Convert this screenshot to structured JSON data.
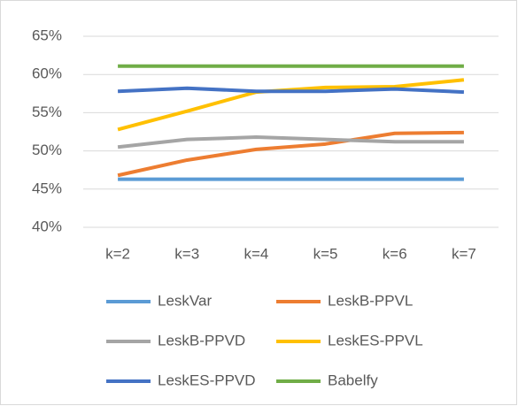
{
  "chart_data": {
    "type": "line",
    "categories": [
      "k=2",
      "k=3",
      "k=4",
      "k=5",
      "k=6",
      "k=7"
    ],
    "series": [
      {
        "name": "LeskVar",
        "color": "#5b9bd5",
        "values": [
          46.3,
          46.3,
          46.3,
          46.3,
          46.3,
          46.3
        ]
      },
      {
        "name": "LeskB-PPVL",
        "color": "#ed7d31",
        "values": [
          46.8,
          48.8,
          50.2,
          50.9,
          52.3,
          52.4
        ]
      },
      {
        "name": "LeskB-PPVD",
        "color": "#a5a5a5",
        "values": [
          50.5,
          51.5,
          51.8,
          51.5,
          51.2,
          51.2
        ]
      },
      {
        "name": "LeskES-PPVL",
        "color": "#ffc000",
        "values": [
          52.8,
          55.2,
          57.7,
          58.3,
          58.4,
          59.3
        ]
      },
      {
        "name": "LeskES-PPVD",
        "color": "#4472c4",
        "values": [
          57.8,
          58.2,
          57.8,
          57.8,
          58.1,
          57.7
        ]
      },
      {
        "name": "Babelfy",
        "color": "#70ad47",
        "values": [
          61.1,
          61.1,
          61.1,
          61.1,
          61.1,
          61.1
        ]
      }
    ],
    "ylim": [
      40,
      65
    ],
    "yticks": [
      {
        "value": 40,
        "label": "40%"
      },
      {
        "value": 45,
        "label": "45%"
      },
      {
        "value": 50,
        "label": "50%"
      },
      {
        "value": 55,
        "label": "55%"
      },
      {
        "value": 60,
        "label": "60%"
      },
      {
        "value": 65,
        "label": "65%"
      }
    ],
    "grid": true,
    "legend": "bottom"
  }
}
